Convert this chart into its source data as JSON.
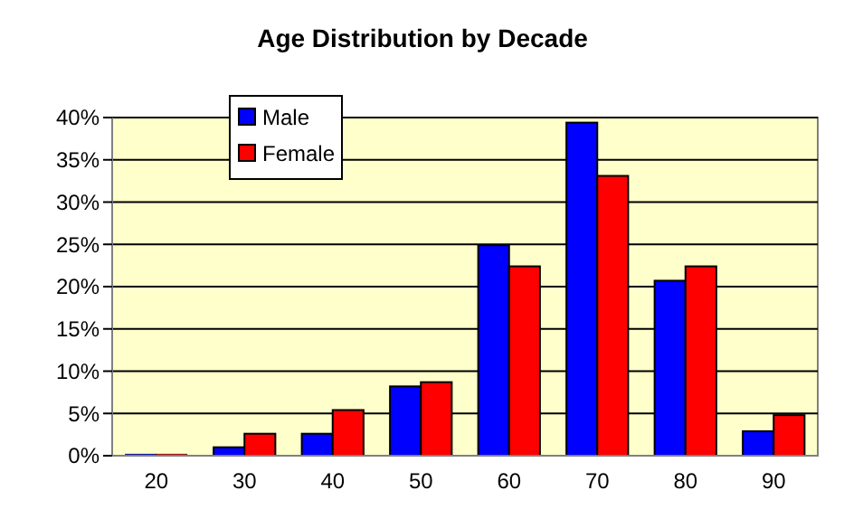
{
  "chart_data": {
    "type": "bar",
    "title": "Age Distribution by Decade",
    "categories": [
      "20",
      "30",
      "40",
      "50",
      "60",
      "70",
      "80",
      "90"
    ],
    "series": [
      {
        "name": "Male",
        "color": "#0000ff",
        "values": [
          0.2,
          1,
          2.6,
          8.2,
          24.9,
          39.4,
          20.7,
          2.9
        ]
      },
      {
        "name": "Female",
        "color": "#ff0000",
        "values": [
          0.2,
          2.6,
          5.4,
          8.7,
          22.4,
          33.1,
          22.4,
          4.8
        ]
      }
    ],
    "ylim": [
      0,
      40
    ],
    "yticks": [
      {
        "value": 0,
        "label": "0%"
      },
      {
        "value": 5,
        "label": "5%"
      },
      {
        "value": 10,
        "label": "10%"
      },
      {
        "value": 15,
        "label": "15%"
      },
      {
        "value": 20,
        "label": "20%"
      },
      {
        "value": 25,
        "label": "25%"
      },
      {
        "value": 30,
        "label": "30%"
      },
      {
        "value": 35,
        "label": "35%"
      },
      {
        "value": 40,
        "label": "40%"
      }
    ],
    "grid": "y",
    "legend": "top left"
  }
}
